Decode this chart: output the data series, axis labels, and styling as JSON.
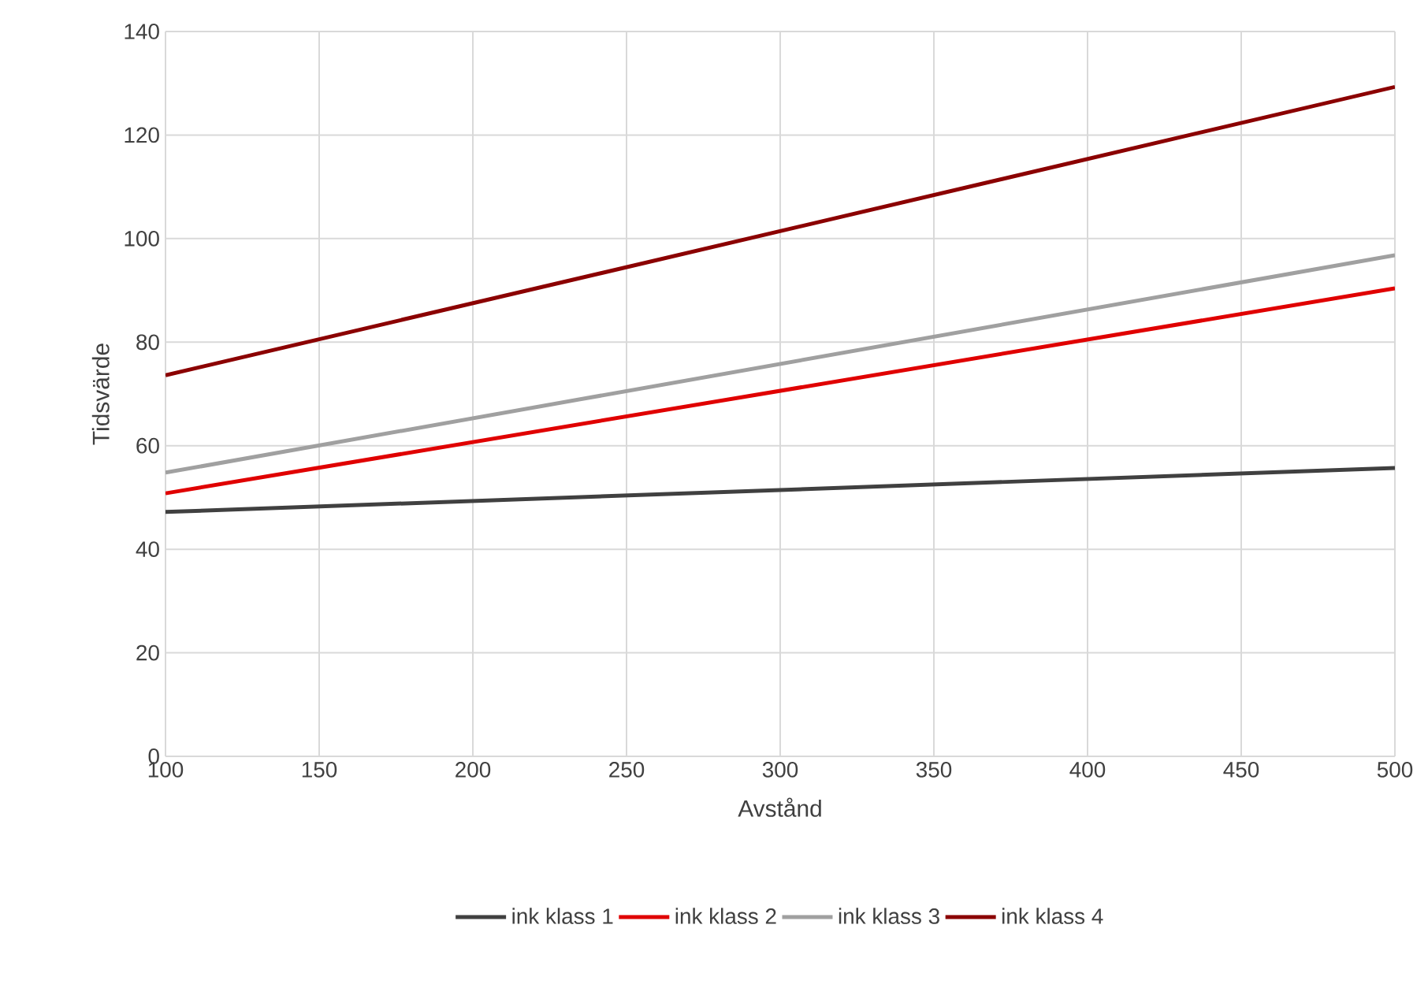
{
  "chart_data": {
    "type": "line",
    "xlabel": "Avstånd",
    "ylabel": "Tidsvärde",
    "x": [
      100,
      500
    ],
    "series": [
      {
        "name": "ink klass 1",
        "color": "#404040",
        "values": [
          47.2,
          55.7
        ]
      },
      {
        "name": "ink klass 2",
        "color": "#e00000",
        "values": [
          50.8,
          90.4
        ]
      },
      {
        "name": "ink klass 3",
        "color": "#a0a0a0",
        "values": [
          54.8,
          96.8
        ]
      },
      {
        "name": "ink klass 4",
        "color": "#8b0000",
        "values": [
          73.6,
          129.3
        ]
      }
    ],
    "xlim": [
      100,
      500
    ],
    "ylim": [
      0,
      140
    ],
    "xticks": [
      100,
      150,
      200,
      250,
      300,
      350,
      400,
      450,
      500
    ],
    "yticks": [
      0,
      20,
      40,
      60,
      80,
      100,
      120,
      140
    ],
    "grid": true,
    "legend": "bottom"
  }
}
